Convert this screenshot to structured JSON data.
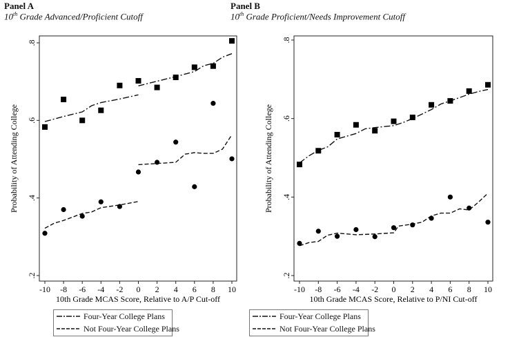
{
  "panels": [
    {
      "title": "Panel A",
      "subtitle_num": "10",
      "subtitle_sup": "th",
      "subtitle_rest": " Grade Advanced/Proficient Cutoff"
    },
    {
      "title": "Panel B",
      "subtitle_num": "10",
      "subtitle_sup": "th",
      "subtitle_rest": " Grade Proficient/Needs Improvement Cutoff"
    }
  ],
  "chart_data": [
    {
      "type": "scatter",
      "xlabel": "10th Grade MCAS Score, Relative to A/P Cut-off",
      "ylabel": "Probability of Attending College",
      "xlim": [
        -10,
        10
      ],
      "ylim": [
        0.2,
        0.8
      ],
      "xticks": [
        "-10",
        "-8",
        "-6",
        "-4",
        "-2",
        "0",
        "2",
        "4",
        "6",
        "8",
        "10"
      ],
      "yticks": [
        ".2",
        ".4",
        ".6",
        ".8"
      ],
      "grid": false,
      "legend": {
        "placement": "bottom",
        "entries": [
          "Four-Year College Plans",
          "Not Four-Year College Plans"
        ]
      },
      "points": [
        {
          "marker": "square",
          "x": [
            -10,
            -8,
            -6,
            -4,
            -2,
            0,
            2,
            4,
            6,
            8,
            10
          ],
          "y": [
            0.583,
            0.654,
            0.6,
            0.626,
            0.69,
            0.702,
            0.685,
            0.711,
            0.737,
            0.74,
            0.805
          ]
        },
        {
          "marker": "circle",
          "x": [
            -10,
            -8,
            -6,
            -4,
            -2,
            0,
            2,
            4,
            6,
            8,
            10
          ],
          "y": [
            0.309,
            0.37,
            0.353,
            0.39,
            0.378,
            0.467,
            0.492,
            0.544,
            0.429,
            0.644,
            0.501
          ]
        }
      ],
      "series": [
        {
          "name": "Four-Year College Plans",
          "style": "dash-dot",
          "segments": [
            {
              "x": [
                -10,
                -8,
                -6,
                -5,
                -4,
                -2,
                0
              ],
              "y": [
                0.597,
                0.61,
                0.622,
                0.638,
                0.646,
                0.655,
                0.666
              ]
            },
            {
              "x": [
                0,
                2,
                4,
                6,
                7,
                8,
                9,
                10
              ],
              "y": [
                0.689,
                0.701,
                0.713,
                0.726,
                0.741,
                0.747,
                0.763,
                0.772
              ]
            }
          ]
        },
        {
          "name": "Not Four-Year College Plans",
          "style": "dash",
          "segments": [
            {
              "x": [
                -10,
                -9,
                -8,
                -6,
                -5,
                -4,
                -2,
                0
              ],
              "y": [
                0.322,
                0.335,
                0.342,
                0.36,
                0.364,
                0.375,
                0.382,
                0.391
              ]
            },
            {
              "x": [
                0,
                2,
                4,
                5,
                6,
                7,
                8,
                9,
                10
              ],
              "y": [
                0.486,
                0.489,
                0.492,
                0.513,
                0.517,
                0.515,
                0.515,
                0.526,
                0.563
              ]
            }
          ]
        }
      ]
    },
    {
      "type": "scatter",
      "xlabel": "10th Grade MCAS Score, Relative to P/NI Cut-off",
      "ylabel": "Probability of Attending College",
      "xlim": [
        -10,
        10
      ],
      "ylim": [
        0.2,
        0.8
      ],
      "xticks": [
        "-10",
        "-8",
        "-6",
        "-4",
        "-2",
        "0",
        "2",
        "4",
        "6",
        "8",
        "10"
      ],
      "yticks": [
        ".2",
        ".4",
        ".6",
        ".8"
      ],
      "grid": false,
      "legend": {
        "placement": "bottom",
        "entries": [
          "Four-Year College Plans",
          "Not Four-Year College Plans"
        ]
      },
      "points": [
        {
          "marker": "square",
          "x": [
            -10,
            -8,
            -6,
            -4,
            -2,
            0,
            2,
            4,
            6,
            8,
            10
          ],
          "y": [
            0.483,
            0.518,
            0.559,
            0.584,
            0.569,
            0.593,
            0.603,
            0.635,
            0.645,
            0.67,
            0.686
          ]
        },
        {
          "marker": "circle",
          "x": [
            -10,
            -8,
            -6,
            -4,
            -2,
            0,
            2,
            4,
            6,
            8,
            10
          ],
          "y": [
            0.282,
            0.313,
            0.3,
            0.317,
            0.299,
            0.322,
            0.329,
            0.346,
            0.4,
            0.372,
            0.336
          ]
        }
      ],
      "series": [
        {
          "name": "Four-Year College Plans",
          "style": "dash-dot",
          "segments": [
            {
              "x": [
                -10,
                -9,
                -8,
                -7,
                -6,
                -4,
                -3,
                -2,
                0,
                1,
                2,
                4,
                5,
                6,
                8,
                9,
                10
              ],
              "y": [
                0.487,
                0.505,
                0.519,
                0.528,
                0.548,
                0.562,
                0.574,
                0.577,
                0.582,
                0.59,
                0.6,
                0.623,
                0.637,
                0.645,
                0.662,
                0.669,
                0.674
              ]
            }
          ]
        },
        {
          "name": "Not Four-Year College Plans",
          "style": "dash",
          "segments": [
            {
              "x": [
                -10,
                -9,
                -8,
                -7,
                -6,
                -4,
                -2,
                0,
                0.5,
                2,
                3,
                4,
                5,
                6,
                7,
                8,
                9,
                10
              ],
              "y": [
                0.276,
                0.284,
                0.287,
                0.303,
                0.308,
                0.304,
                0.306,
                0.309,
                0.326,
                0.331,
                0.336,
                0.352,
                0.359,
                0.359,
                0.37,
                0.367,
                0.387,
                0.41
              ]
            }
          ]
        }
      ]
    }
  ]
}
